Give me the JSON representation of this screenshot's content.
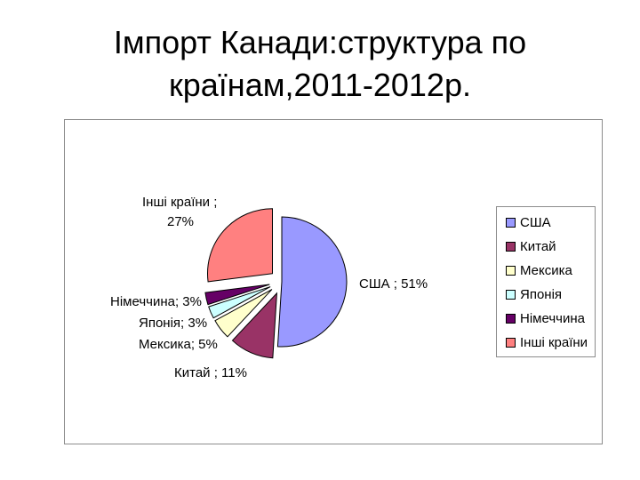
{
  "title": {
    "line1": "Імпорт Канади:структура по",
    "line2": "країнам,2011-2012р."
  },
  "chart_data": {
    "type": "pie",
    "title": "Імпорт Канади:структура по країнам,2011-2012р.",
    "slices": [
      {
        "name": "США",
        "value": 51,
        "label": "США ; 51%",
        "color": "#9999ff",
        "exploded": false
      },
      {
        "name": "Китай",
        "value": 11,
        "label": "Китай ; 11%",
        "color": "#993366",
        "exploded": true
      },
      {
        "name": "Мексика",
        "value": 5,
        "label": "Мексика; 5%",
        "color": "#ffffcc",
        "exploded": true
      },
      {
        "name": "Японія",
        "value": 3,
        "label": "Японія; 3%",
        "color": "#ccffff",
        "exploded": true
      },
      {
        "name": "Німеччина",
        "value": 3,
        "label": "Німеччина; 3%",
        "color": "#660066",
        "exploded": true
      },
      {
        "name": "Інші країни",
        "value": 27,
        "label_line1": "Інші країни ;",
        "label_line2": "27%",
        "color": "#ff8080",
        "exploded": true
      }
    ],
    "legend": {
      "placement": "right",
      "entries": [
        "США",
        "Китай",
        "Мексика",
        "Японія",
        "Німеччина",
        "Інші країни"
      ]
    }
  }
}
